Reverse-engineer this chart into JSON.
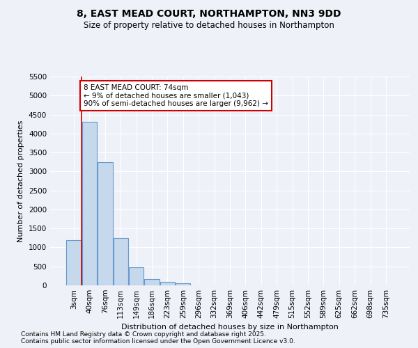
{
  "title": "8, EAST MEAD COURT, NORTHAMPTON, NN3 9DD",
  "subtitle": "Size of property relative to detached houses in Northampton",
  "xlabel": "Distribution of detached houses by size in Northampton",
  "ylabel": "Number of detached properties",
  "categories": [
    "3sqm",
    "40sqm",
    "76sqm",
    "113sqm",
    "149sqm",
    "186sqm",
    "223sqm",
    "259sqm",
    "296sqm",
    "332sqm",
    "369sqm",
    "406sqm",
    "442sqm",
    "479sqm",
    "515sqm",
    "552sqm",
    "589sqm",
    "625sqm",
    "662sqm",
    "698sqm",
    "735sqm"
  ],
  "values": [
    1200,
    4300,
    3250,
    1250,
    480,
    170,
    100,
    55,
    0,
    0,
    0,
    0,
    0,
    0,
    0,
    0,
    0,
    0,
    0,
    0,
    0
  ],
  "bar_color": "#c5d8ec",
  "bar_edge_color": "#6699cc",
  "annotation_text_line1": "8 EAST MEAD COURT: 74sqm",
  "annotation_text_line2": "← 9% of detached houses are smaller (1,043)",
  "annotation_text_line3": "90% of semi-detached houses are larger (9,962) →",
  "annotation_box_color": "#ffffff",
  "annotation_box_edge_color": "#cc0000",
  "vline_color": "#cc0000",
  "vline_x": 0.5,
  "ylim": [
    0,
    5500
  ],
  "yticks": [
    0,
    500,
    1000,
    1500,
    2000,
    2500,
    3000,
    3500,
    4000,
    4500,
    5000,
    5500
  ],
  "footer_line1": "Contains HM Land Registry data © Crown copyright and database right 2025.",
  "footer_line2": "Contains public sector information licensed under the Open Government Licence v3.0.",
  "background_color": "#eef2f8",
  "plot_bg_color": "#eef2f8",
  "grid_color": "#ffffff",
  "title_fontsize": 10,
  "subtitle_fontsize": 8.5,
  "axis_label_fontsize": 8,
  "tick_fontsize": 7.5,
  "footer_fontsize": 6.5
}
